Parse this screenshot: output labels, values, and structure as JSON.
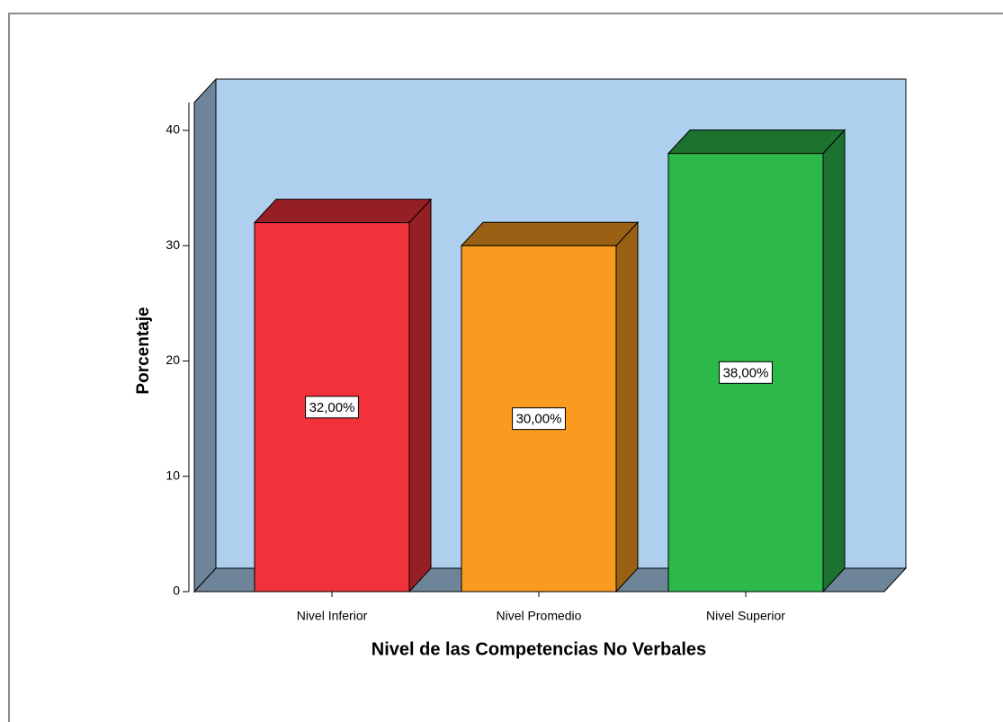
{
  "chart_data": {
    "type": "bar",
    "x_label": "Nivel de las Competencias No Verbales",
    "y_label": "Porcentaje",
    "categories": [
      "Nivel Inferior",
      "Nivel Promedio",
      "Nivel Superior"
    ],
    "values": [
      32,
      30,
      38
    ],
    "value_labels": [
      "32,00%",
      "30,00%",
      "38,00%"
    ],
    "colors": [
      "#f2323a",
      "#f99b1f",
      "#2db84a"
    ],
    "ylim": [
      0,
      40
    ],
    "yticks": [
      0,
      10,
      20,
      30,
      40
    ]
  }
}
